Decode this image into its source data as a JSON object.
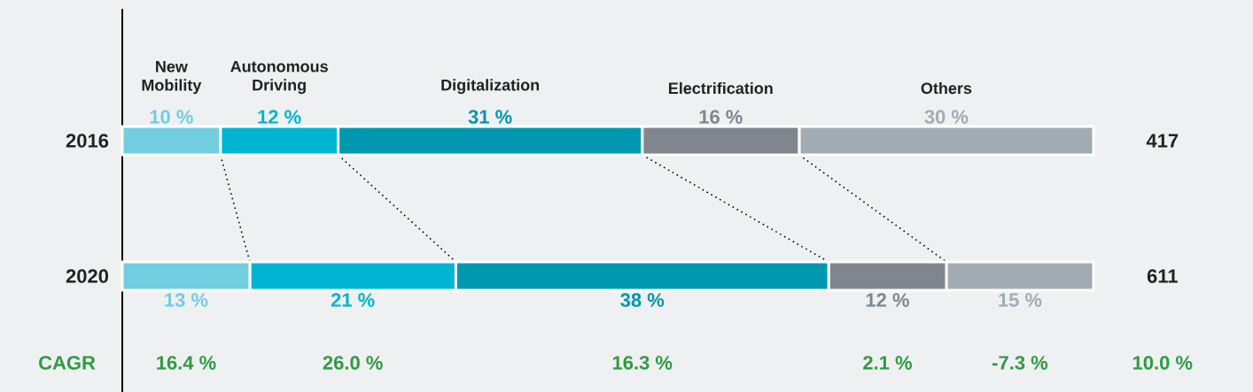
{
  "chart_data": {
    "type": "bar",
    "orientation": "horizontal",
    "stacked": true,
    "categories": [
      "2016",
      "2020"
    ],
    "tick_labels": "y",
    "series": [
      {
        "name": "New Mobility",
        "color": "#72cde0",
        "values": [
          10,
          13
        ],
        "value_labels": [
          "10 %",
          "13 %"
        ]
      },
      {
        "name": "Autonomous Driving",
        "color": "#00b5d1",
        "values": [
          12,
          21
        ],
        "value_labels": [
          "12 %",
          "21 %"
        ]
      },
      {
        "name": "Digitalization",
        "color": "#0098ae",
        "values": [
          31,
          38
        ],
        "value_labels": [
          "31 %",
          "38 %"
        ]
      },
      {
        "name": "Electrification",
        "color": "#7f868e",
        "values": [
          16,
          12
        ],
        "value_labels": [
          "16 %",
          "12 %"
        ]
      },
      {
        "name": "Others",
        "color": "#a3abb3",
        "values": [
          30,
          15
        ],
        "value_labels": [
          "30 %",
          "15 %"
        ]
      }
    ],
    "annotations": [
      "417",
      "611",
      "CAGR",
      "16.4 %",
      "26.0 %",
      "16.3 %",
      "2.1 %",
      "-7.3 %",
      "10.0 %"
    ]
  }
}
